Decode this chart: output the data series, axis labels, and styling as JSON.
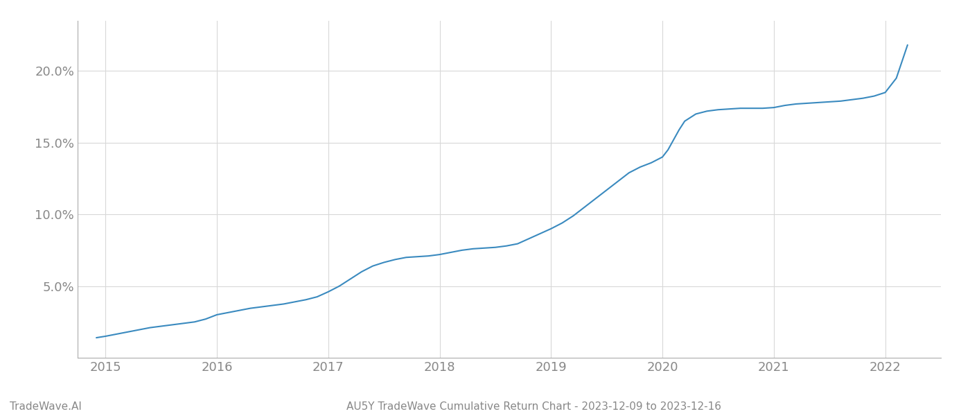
{
  "title": "AU5Y TradeWave Cumulative Return Chart - 2023-12-09 to 2023-12-16",
  "watermark": "TradeWave.AI",
  "line_color": "#3a8abf",
  "background_color": "#ffffff",
  "grid_color": "#cccccc",
  "x_values": [
    2014.92,
    2015.0,
    2015.1,
    2015.2,
    2015.3,
    2015.4,
    2015.5,
    2015.6,
    2015.7,
    2015.8,
    2015.9,
    2016.0,
    2016.1,
    2016.2,
    2016.3,
    2016.4,
    2016.5,
    2016.6,
    2016.7,
    2016.8,
    2016.9,
    2017.0,
    2017.1,
    2017.2,
    2017.3,
    2017.4,
    2017.5,
    2017.6,
    2017.7,
    2017.8,
    2017.9,
    2018.0,
    2018.1,
    2018.2,
    2018.3,
    2018.4,
    2018.5,
    2018.6,
    2018.7,
    2018.8,
    2018.9,
    2019.0,
    2019.1,
    2019.2,
    2019.3,
    2019.4,
    2019.5,
    2019.6,
    2019.7,
    2019.8,
    2019.9,
    2020.0,
    2020.05,
    2020.1,
    2020.15,
    2020.2,
    2020.3,
    2020.4,
    2020.5,
    2020.6,
    2020.7,
    2020.8,
    2020.9,
    2021.0,
    2021.1,
    2021.2,
    2021.3,
    2021.4,
    2021.5,
    2021.6,
    2021.7,
    2021.8,
    2021.9,
    2022.0,
    2022.1,
    2022.2
  ],
  "y_values": [
    1.4,
    1.5,
    1.65,
    1.8,
    1.95,
    2.1,
    2.2,
    2.3,
    2.4,
    2.5,
    2.7,
    3.0,
    3.15,
    3.3,
    3.45,
    3.55,
    3.65,
    3.75,
    3.9,
    4.05,
    4.25,
    4.6,
    5.0,
    5.5,
    6.0,
    6.4,
    6.65,
    6.85,
    7.0,
    7.05,
    7.1,
    7.2,
    7.35,
    7.5,
    7.6,
    7.65,
    7.7,
    7.8,
    7.95,
    8.3,
    8.65,
    9.0,
    9.4,
    9.9,
    10.5,
    11.1,
    11.7,
    12.3,
    12.9,
    13.3,
    13.6,
    14.0,
    14.5,
    15.2,
    15.9,
    16.5,
    17.0,
    17.2,
    17.3,
    17.35,
    17.4,
    17.4,
    17.4,
    17.45,
    17.6,
    17.7,
    17.75,
    17.8,
    17.85,
    17.9,
    18.0,
    18.1,
    18.25,
    18.5,
    19.5,
    21.8
  ],
  "xlim": [
    2014.75,
    2022.5
  ],
  "ylim": [
    0.0,
    23.5
  ],
  "yticks": [
    5.0,
    10.0,
    15.0,
    20.0
  ],
  "xticks": [
    2015,
    2016,
    2017,
    2018,
    2019,
    2020,
    2021,
    2022
  ],
  "ylabel_fontsize": 13,
  "xlabel_fontsize": 13,
  "title_fontsize": 11,
  "watermark_fontsize": 11,
  "line_width": 1.5,
  "grid_color_light": "#d8d8d8",
  "grid_alpha": 1.0,
  "grid_linestyle": "-",
  "grid_linewidth": 0.8,
  "tick_color": "#888888",
  "spine_color": "#aaaaaa"
}
